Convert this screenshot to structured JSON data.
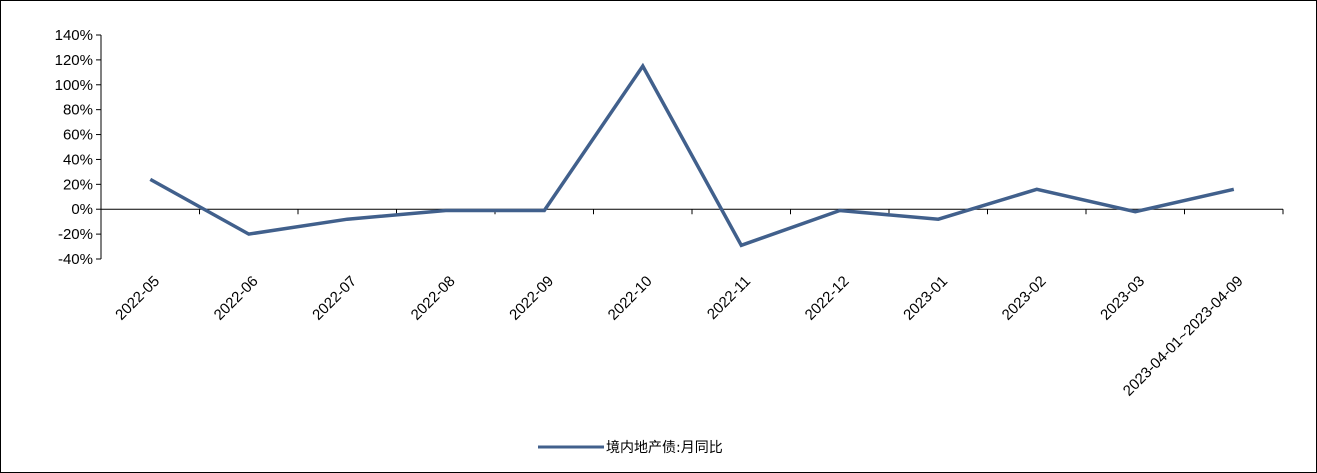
{
  "chart_data": {
    "type": "line",
    "title": "",
    "xlabel": "",
    "ylabel": "",
    "categories": [
      "2022-05",
      "2022-06",
      "2022-07",
      "2022-08",
      "2022-09",
      "2022-10",
      "2022-11",
      "2022-12",
      "2023-01",
      "2023-02",
      "2023-03",
      "2023-04-01~2023-04-09"
    ],
    "series": [
      {
        "name": "境内地产债:月同比",
        "color": "#41608c",
        "values": [
          24,
          -20,
          -8,
          -1,
          -1,
          115,
          -29,
          -1,
          -8,
          16,
          -2,
          16
        ]
      }
    ],
    "ylim": [
      -40,
      140
    ],
    "yticks": [
      -40,
      -20,
      0,
      20,
      40,
      60,
      80,
      100,
      120,
      140
    ],
    "ytick_labels": [
      "-40%",
      "-20%",
      "0%",
      "20%",
      "40%",
      "60%",
      "80%",
      "100%",
      "120%",
      "140%"
    ],
    "grid": false,
    "legend": "bottom-center"
  }
}
